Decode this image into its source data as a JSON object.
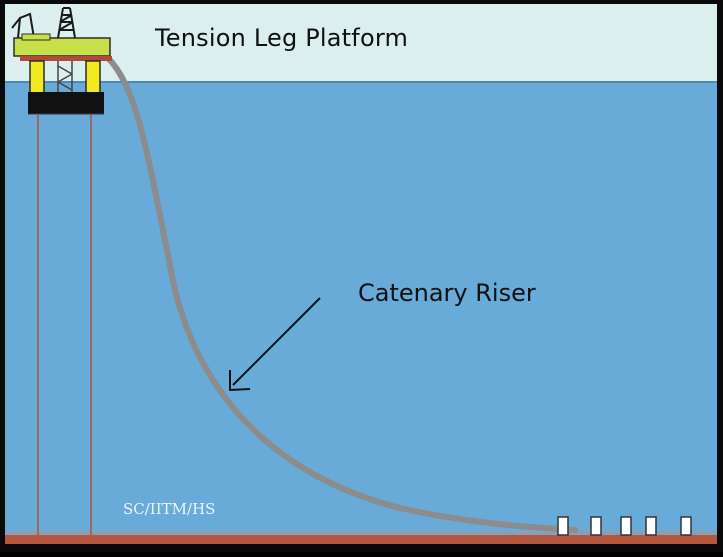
{
  "diagram": {
    "title": "Tension Leg Platform",
    "riser_label": "Catenary Riser",
    "credit": "SC/IITM/HS"
  },
  "colors": {
    "sky": "#dcefef",
    "sea": "#68aad8",
    "seabed": "#b5573f",
    "riser": "#8c8c8c",
    "deck": "#c8e04a",
    "pontoon": "#111111",
    "column": "#f2ea1e",
    "tendon": "#9a6a5a"
  },
  "icons": {
    "platform": "tension-leg-platform-icon",
    "arrow": "arrow-pointer-icon",
    "anchors": "seabed-anchor-posts-icon"
  }
}
